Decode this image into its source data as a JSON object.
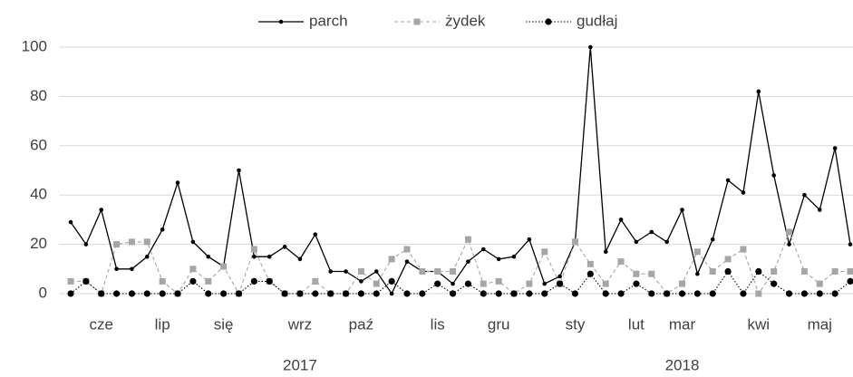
{
  "chart_data": {
    "type": "line",
    "categories": [
      null,
      null,
      "cze",
      null,
      null,
      null,
      "lip",
      null,
      null,
      null,
      "się",
      null,
      null,
      null,
      null,
      "wrz",
      null,
      null,
      null,
      "paź",
      null,
      null,
      null,
      null,
      "lis",
      null,
      null,
      null,
      "gru",
      null,
      null,
      null,
      null,
      "sty",
      null,
      null,
      null,
      "lut",
      null,
      null,
      "mar",
      null,
      null,
      null,
      null,
      "kwi",
      null,
      null,
      null,
      "maj",
      null,
      null
    ],
    "year_categories": [
      null,
      null,
      null,
      null,
      null,
      null,
      null,
      null,
      null,
      null,
      null,
      null,
      null,
      null,
      null,
      "2017",
      null,
      null,
      null,
      null,
      null,
      null,
      null,
      null,
      null,
      null,
      null,
      null,
      null,
      null,
      null,
      null,
      null,
      null,
      null,
      null,
      null,
      null,
      null,
      null,
      "2018",
      null,
      null,
      null,
      null,
      null,
      null,
      null,
      null,
      null,
      null,
      null
    ],
    "series": [
      {
        "name": "parch",
        "color": "#000000",
        "style": "solid",
        "marker": "dot",
        "values": [
          29,
          20,
          34,
          10,
          10,
          15,
          26,
          45,
          21,
          15,
          11,
          50,
          15,
          15,
          19,
          14,
          24,
          9,
          9,
          5,
          9,
          0,
          13,
          9,
          9,
          4,
          13,
          18,
          14,
          15,
          22,
          4,
          7,
          21,
          100,
          17,
          30,
          21,
          25,
          21,
          34,
          8,
          22,
          46,
          41,
          82,
          48,
          20,
          40,
          34,
          59,
          20
        ]
      },
      {
        "name": "żydek",
        "color": "#a6a6a6",
        "style": "dashed",
        "marker": "square",
        "values": [
          5,
          5,
          0,
          20,
          21,
          21,
          5,
          0,
          10,
          5,
          11,
          0,
          18,
          5,
          0,
          0,
          5,
          0,
          0,
          9,
          4,
          14,
          18,
          9,
          9,
          9,
          22,
          4,
          5,
          0,
          4,
          17,
          4,
          21,
          12,
          4,
          13,
          8,
          8,
          0,
          4,
          17,
          9,
          14,
          18,
          0,
          9,
          25,
          9,
          4,
          9,
          9
        ]
      },
      {
        "name": "gudłaj",
        "color": "#000000",
        "style": "dotted",
        "marker": "circle",
        "values": [
          0,
          5,
          0,
          0,
          0,
          0,
          0,
          0,
          5,
          0,
          0,
          0,
          5,
          5,
          0,
          0,
          0,
          0,
          0,
          0,
          0,
          5,
          0,
          0,
          4,
          0,
          4,
          0,
          0,
          0,
          0,
          0,
          4,
          0,
          8,
          0,
          0,
          4,
          0,
          0,
          0,
          0,
          0,
          9,
          0,
          9,
          4,
          0,
          0,
          0,
          0,
          5
        ]
      }
    ],
    "ylim": [
      0,
      100
    ],
    "yticks": [
      0,
      20,
      40,
      60,
      80,
      100
    ],
    "grid": true,
    "legend": "top"
  }
}
